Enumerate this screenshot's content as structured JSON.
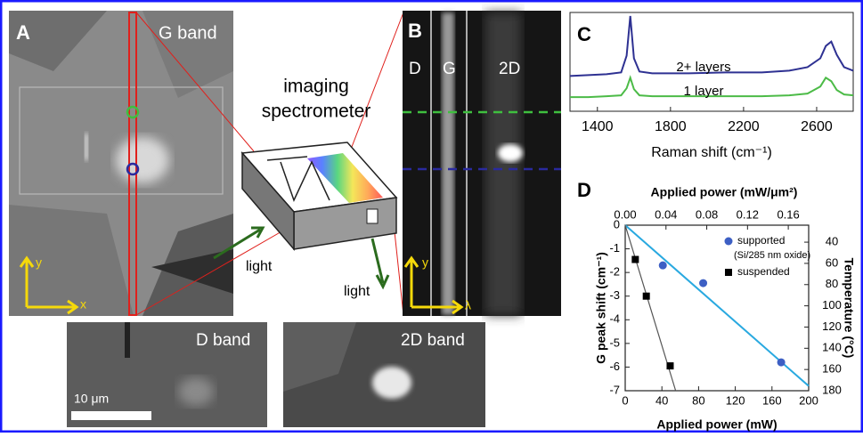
{
  "panel_a": {
    "label": "A",
    "title": "G band",
    "axis_y": "y",
    "axis_x": "x"
  },
  "spectrometer": {
    "title_line1": "imaging",
    "title_line2": "spectrometer",
    "light_in": "light",
    "light_out": "light"
  },
  "panel_b": {
    "label": "B",
    "bands": [
      "D",
      "G",
      "2D"
    ],
    "axis_y": "y",
    "axis_x": "λ"
  },
  "panel_d_band": {
    "title": "D band",
    "scale_bar": "10 μm"
  },
  "panel_2d_band": {
    "title": "2D band"
  },
  "chart_data": [
    {
      "type": "line",
      "label": "C",
      "xlabel": "Raman shift (cm⁻¹)",
      "x": [
        1250,
        1350,
        1450,
        1530,
        1560,
        1580,
        1600,
        1630,
        1700,
        1900,
        2100,
        2300,
        2450,
        2550,
        2620,
        2650,
        2680,
        2710,
        2750,
        2800
      ],
      "xlim": [
        1250,
        2800
      ],
      "xticks": [
        1400,
        1800,
        2200,
        2600
      ],
      "ylim": [
        0,
        10
      ],
      "series": [
        {
          "name": "2+ layers",
          "color": "#2e3192",
          "values": [
            3.2,
            3.3,
            3.4,
            3.6,
            5.5,
            10,
            5.2,
            3.7,
            3.5,
            3.5,
            3.6,
            3.6,
            3.8,
            4.2,
            5.2,
            6.6,
            7.1,
            5.6,
            4.2,
            3.8
          ]
        },
        {
          "name": "1 layer",
          "color": "#4cbb47",
          "values": [
            0.8,
            0.8,
            0.9,
            1.0,
            1.8,
            3.0,
            1.7,
            1.0,
            0.9,
            0.9,
            0.9,
            0.9,
            1.0,
            1.2,
            2.0,
            3.0,
            2.6,
            1.6,
            1.1,
            1.0
          ]
        }
      ]
    },
    {
      "type": "scatter",
      "label": "D",
      "xlabel": "Applied power (mW)",
      "x2label": "Applied power (mW/μm²)",
      "ylabel": "G peak shift (cm⁻¹)",
      "y2label": "Temperature (°C)",
      "xlim": [
        0,
        200
      ],
      "xticks": [
        0,
        40,
        80,
        120,
        160,
        200
      ],
      "x2lim": [
        0,
        0.18
      ],
      "x2ticks": [
        {
          "value": 0,
          "label": "0.00"
        },
        0.04,
        0.08,
        0.12,
        0.16
      ],
      "ylim": [
        -7,
        0
      ],
      "yticks": [
        0,
        -1,
        -2,
        -3,
        -4,
        -5,
        -6,
        -7
      ],
      "y2lim": [
        180,
        24
      ],
      "y2ticks": [
        40,
        60,
        80,
        100,
        120,
        140,
        160,
        180
      ],
      "series": [
        {
          "name": "supported",
          "annotation": "(Si/285 nm oxide)",
          "color": "#3d5fc4",
          "marker": "circle",
          "x": [
            41,
            85,
            170
          ],
          "values": [
            -1.7,
            -2.45,
            -5.8
          ]
        },
        {
          "name": "suspended",
          "color": "#000000",
          "marker": "square",
          "x": [
            11,
            23,
            49
          ],
          "values": [
            -1.45,
            -3.0,
            -5.95
          ]
        }
      ],
      "fits": [
        {
          "color": "#29a9e0",
          "x": [
            0,
            200
          ],
          "values": [
            0,
            -6.8
          ]
        },
        {
          "color": "#555555",
          "x": [
            0,
            55
          ],
          "values": [
            0,
            -7
          ]
        }
      ]
    }
  ]
}
